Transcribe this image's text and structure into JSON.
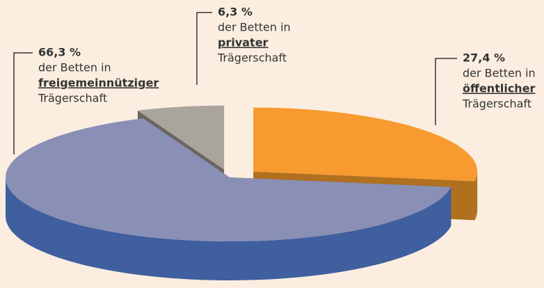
{
  "chart_data": {
    "type": "pie3d",
    "categories": [
      "öffentlicher",
      "freigemeinnütziger",
      "privater"
    ],
    "values": [
      27.4,
      66.3,
      6.3
    ],
    "value_labels": [
      "27,4 %",
      "66,3 %",
      "6,3 %"
    ],
    "label_prefix": [
      "der Betten in",
      "der Betten in",
      "der Betten in"
    ],
    "label_suffix": [
      "Trägerschaft",
      "Trägerschaft",
      "Trägerschaft"
    ],
    "colors": [
      "#f79a30",
      "#8a8fb6",
      "#a9a49c"
    ],
    "side_colors": [
      "#b0701f",
      "#3f5f9e",
      "#6b6560"
    ]
  }
}
